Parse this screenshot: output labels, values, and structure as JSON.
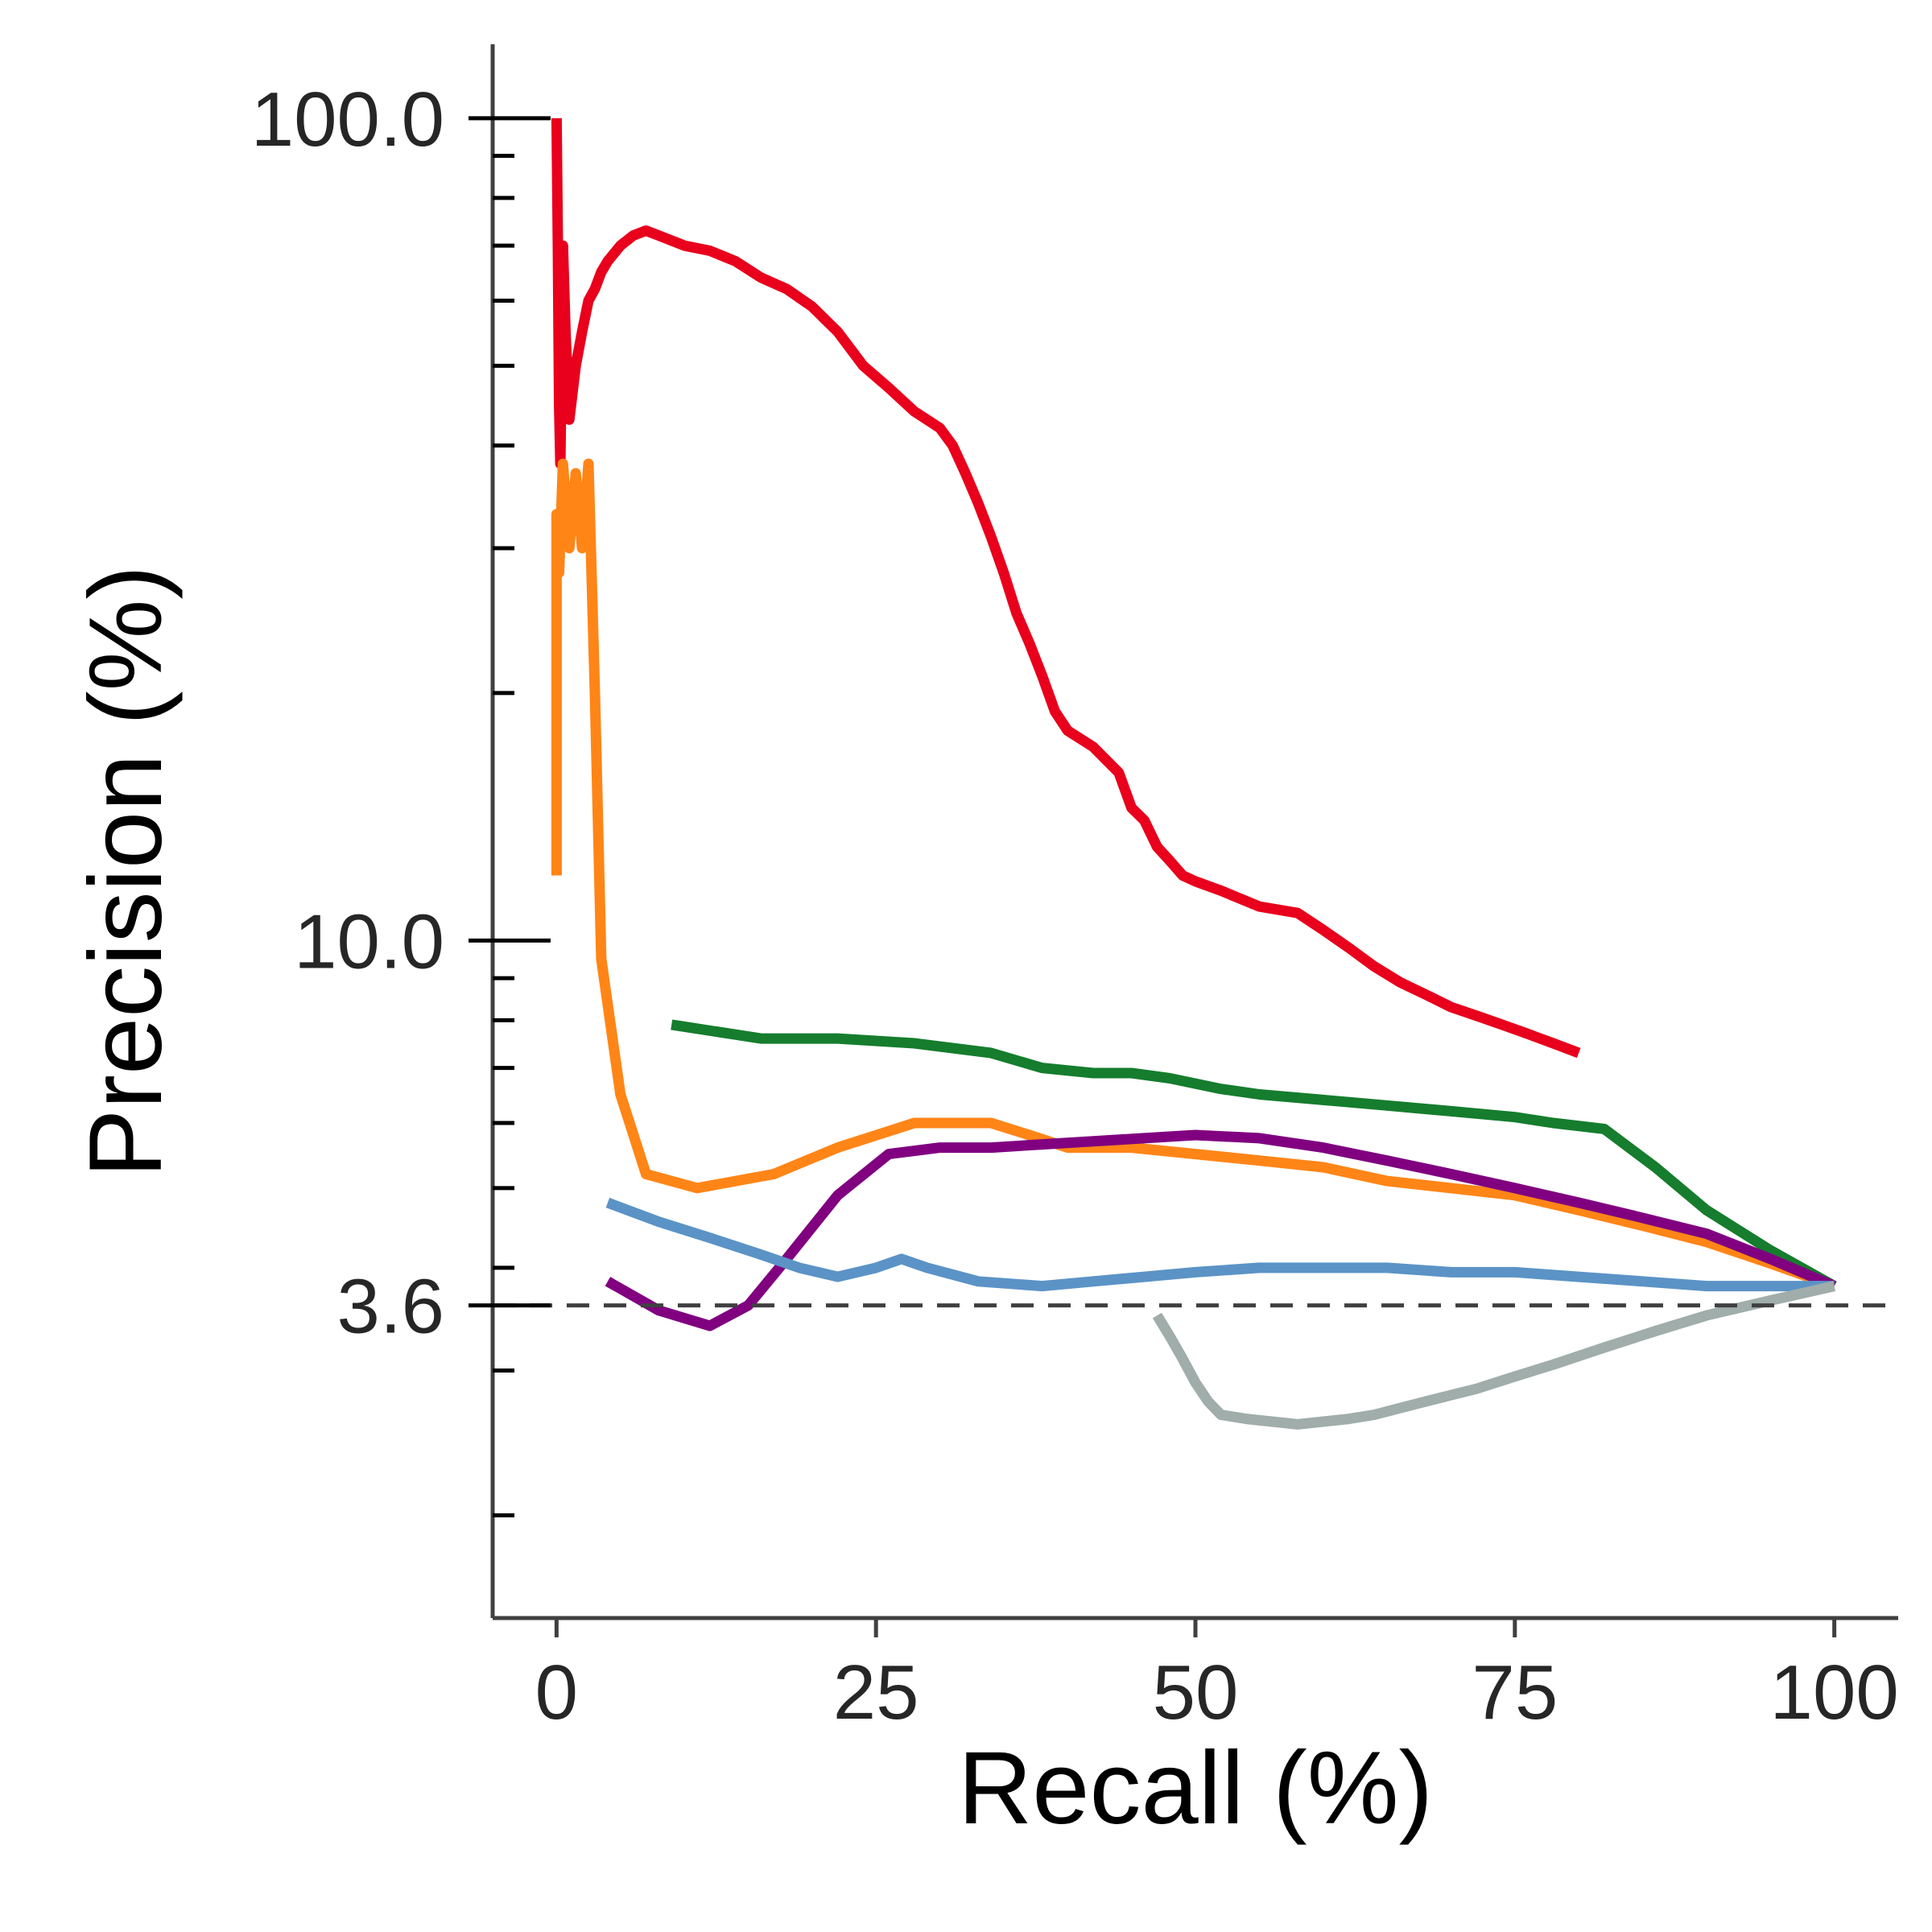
{
  "chart_data": {
    "type": "line",
    "xlabel": "Recall (%)",
    "ylabel": "Precision (%)",
    "xlim": [
      -5,
      105
    ],
    "ylim": [
      1.5,
      123
    ],
    "yscale": "log",
    "xticks": [
      0,
      25,
      50,
      75,
      100
    ],
    "yticks": [
      100.0,
      10.0,
      3.6
    ],
    "ytick_labels": [
      "100.0",
      "10.0",
      "3.6"
    ],
    "grid": false,
    "baseline": 3.6,
    "series": [
      {
        "color": "#e8001c",
        "x": [
          0,
          0.1,
          0.2,
          0.3,
          0.5,
          0.7,
          1.0,
          1.5,
          2,
          2.5,
          3,
          3.5,
          4,
          5,
          6,
          7,
          8,
          9,
          10,
          12,
          14,
          16,
          18,
          20,
          22,
          24,
          26,
          28,
          30,
          31,
          32,
          33,
          34,
          35,
          36,
          37,
          38,
          39,
          40,
          42,
          44,
          45,
          46,
          47,
          48,
          49,
          50,
          52,
          55,
          58,
          60,
          62,
          64,
          66,
          68,
          70,
          72,
          74,
          76,
          78,
          80
        ],
        "y": [
          100,
          70,
          45,
          38,
          70,
          55,
          43,
          50,
          55,
          60,
          62,
          65,
          67,
          70,
          72,
          73,
          72,
          71,
          70,
          69,
          67,
          64,
          62,
          59,
          55,
          50,
          47,
          44,
          42,
          40,
          37,
          34,
          31,
          28,
          25,
          23,
          21,
          19,
          18,
          17.2,
          16,
          14.5,
          14,
          13,
          12.5,
          12,
          11.8,
          11.5,
          11,
          10.8,
          10.3,
          9.8,
          9.3,
          8.9,
          8.6,
          8.3,
          8.1,
          7.9,
          7.7,
          7.5,
          7.3
        ]
      },
      {
        "color": "#ff8517",
        "x": [
          0,
          0,
          0.2,
          0.5,
          1.0,
          1.5,
          2.0,
          2.5,
          3,
          3.5,
          5,
          7,
          11,
          17,
          22,
          28,
          34,
          37,
          40,
          45,
          50,
          55,
          60,
          65,
          70,
          75,
          80,
          85,
          90,
          95,
          100
        ],
        "y": [
          12,
          33,
          28,
          38,
          30,
          37,
          30,
          38,
          20,
          9.5,
          6.5,
          5.2,
          5.0,
          5.2,
          5.6,
          6.0,
          6.0,
          5.8,
          5.6,
          5.6,
          5.5,
          5.4,
          5.3,
          5.1,
          5.0,
          4.9,
          4.7,
          4.5,
          4.3,
          4.05,
          3.8
        ]
      },
      {
        "color": "#157d2d",
        "x": [
          9,
          16,
          22,
          28,
          34,
          38,
          42,
          45,
          48,
          52,
          55,
          60,
          65,
          70,
          75,
          78,
          82,
          86,
          90,
          95,
          100
        ],
        "y": [
          7.9,
          7.6,
          7.6,
          7.5,
          7.3,
          7.0,
          6.9,
          6.9,
          6.8,
          6.6,
          6.5,
          6.4,
          6.3,
          6.2,
          6.1,
          6.0,
          5.9,
          5.3,
          4.7,
          4.2,
          3.8
        ]
      },
      {
        "color": "#800080",
        "x": [
          4,
          8,
          12,
          15,
          18,
          22,
          26,
          30,
          34,
          38,
          42,
          46,
          50,
          55,
          60,
          65,
          70,
          75,
          80,
          85,
          90,
          95,
          100
        ],
        "y": [
          3.85,
          3.55,
          3.4,
          3.6,
          4.1,
          4.9,
          5.5,
          5.6,
          5.6,
          5.65,
          5.7,
          5.75,
          5.8,
          5.75,
          5.6,
          5.4,
          5.2,
          5.0,
          4.8,
          4.6,
          4.4,
          4.1,
          3.8
        ]
      },
      {
        "color": "#5b93c6",
        "x": [
          4,
          8,
          12,
          16,
          19,
          22,
          25,
          27,
          29,
          33,
          38,
          42,
          46,
          50,
          55,
          60,
          65,
          70,
          75,
          80,
          85,
          90,
          95,
          100
        ],
        "y": [
          4.8,
          4.55,
          4.35,
          4.15,
          4.0,
          3.9,
          4.0,
          4.1,
          4.0,
          3.85,
          3.8,
          3.85,
          3.9,
          3.95,
          4.0,
          4.0,
          4.0,
          3.95,
          3.95,
          3.9,
          3.85,
          3.8,
          3.8,
          3.8
        ]
      },
      {
        "color": "#a0adaa",
        "x": [
          47,
          48,
          49,
          50,
          51,
          52,
          54,
          56,
          58,
          60,
          62,
          64,
          66,
          68,
          70,
          72,
          75,
          78,
          82,
          86,
          90,
          95,
          100
        ],
        "y": [
          3.5,
          3.3,
          3.1,
          2.9,
          2.75,
          2.65,
          2.62,
          2.6,
          2.58,
          2.6,
          2.62,
          2.65,
          2.7,
          2.75,
          2.8,
          2.85,
          2.95,
          3.05,
          3.2,
          3.35,
          3.5,
          3.65,
          3.8
        ]
      }
    ]
  }
}
